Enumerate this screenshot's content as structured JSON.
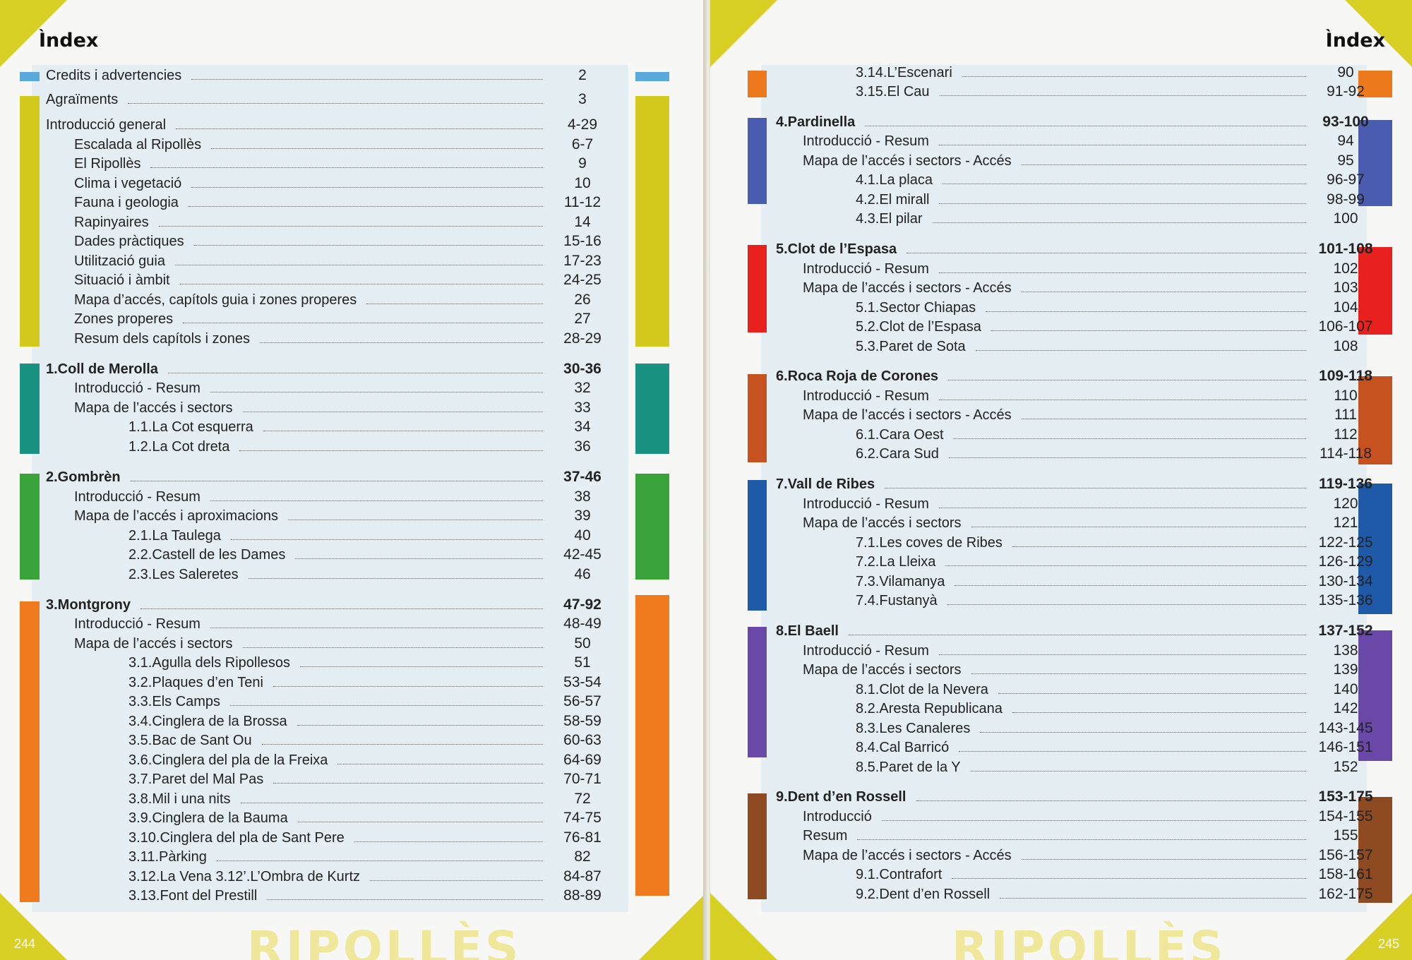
{
  "left": {
    "heading": "Ìndex",
    "page_number": "244",
    "watermark": "RIPOLLÈS",
    "entries": [
      {
        "title": "Credits i advertencies",
        "pages": "2",
        "bold": false,
        "level": 0
      },
      {
        "title": "Agraïments",
        "pages": "3",
        "bold": false,
        "level": 0
      },
      {
        "title": "Introducció general",
        "pages": "4-29",
        "bold": false,
        "level": 0
      },
      {
        "title": "Escalada al Ripollès",
        "pages": "6-7",
        "bold": false,
        "level": 1
      },
      {
        "title": "El Ripollès",
        "pages": "9",
        "bold": false,
        "level": 1
      },
      {
        "title": "Clima i vegetació",
        "pages": "10",
        "bold": false,
        "level": 1
      },
      {
        "title": "Fauna i geologia",
        "pages": "11-12",
        "bold": false,
        "level": 1
      },
      {
        "title": "Rapinyaires",
        "pages": "14",
        "bold": false,
        "level": 1
      },
      {
        "title": "Dades pràctiques",
        "pages": "15-16",
        "bold": false,
        "level": 1
      },
      {
        "title": "Utilització guia",
        "pages": "17-23",
        "bold": false,
        "level": 1
      },
      {
        "title": "Situació i àmbit",
        "pages": "24-25",
        "bold": false,
        "level": 1
      },
      {
        "title": "Mapa d’accés, capítols guia i zones properes",
        "pages": "26",
        "bold": false,
        "level": 1
      },
      {
        "title": "Zones properes",
        "pages": "27",
        "bold": false,
        "level": 1
      },
      {
        "title": "Resum dels capítols i zones",
        "pages": "28-29",
        "bold": false,
        "level": 1
      },
      {
        "title": "1.Coll de Merolla",
        "pages": "30-36",
        "bold": true,
        "level": 0
      },
      {
        "title": "Introducció - Resum",
        "pages": "32",
        "bold": false,
        "level": 1
      },
      {
        "title": "Mapa de l’accés i sectors",
        "pages": "33",
        "bold": false,
        "level": 1
      },
      {
        "title": "1.1.La Cot esquerra",
        "pages": "34",
        "bold": false,
        "level": 2
      },
      {
        "title": "1.2.La Cot dreta",
        "pages": "36",
        "bold": false,
        "level": 2
      },
      {
        "title": "2.Gombrèn",
        "pages": "37-46",
        "bold": true,
        "level": 0
      },
      {
        "title": "Introducció - Resum",
        "pages": "38",
        "bold": false,
        "level": 1
      },
      {
        "title": "Mapa de l’accés i aproximacions",
        "pages": "39",
        "bold": false,
        "level": 1
      },
      {
        "title": "2.1.La Taulega",
        "pages": "40",
        "bold": false,
        "level": 2
      },
      {
        "title": "2.2.Castell de les Dames",
        "pages": "42-45",
        "bold": false,
        "level": 2
      },
      {
        "title": "2.3.Les Saleretes",
        "pages": "46",
        "bold": false,
        "level": 2
      },
      {
        "title": "3.Montgrony",
        "pages": "47-92",
        "bold": true,
        "level": 0
      },
      {
        "title": "Introducció - Resum",
        "pages": "48-49",
        "bold": false,
        "level": 1
      },
      {
        "title": "Mapa de l’accés i sectors",
        "pages": "50",
        "bold": false,
        "level": 1
      },
      {
        "title": "3.1.Agulla dels Ripollesos",
        "pages": "51",
        "bold": false,
        "level": 2
      },
      {
        "title": "3.2.Plaques d’en Teni",
        "pages": "53-54",
        "bold": false,
        "level": 2
      },
      {
        "title": "3.3.Els Camps",
        "pages": "56-57",
        "bold": false,
        "level": 2
      },
      {
        "title": "3.4.Cinglera de la Brossa",
        "pages": "58-59",
        "bold": false,
        "level": 2
      },
      {
        "title": "3.5.Bac de Sant Ou",
        "pages": "60-63",
        "bold": false,
        "level": 2
      },
      {
        "title": "3.6.Cinglera del pla de la Freixa",
        "pages": "64-69",
        "bold": false,
        "level": 2
      },
      {
        "title": "3.7.Paret del Mal Pas",
        "pages": "70-71",
        "bold": false,
        "level": 2
      },
      {
        "title": "3.8.Mil i una nits",
        "pages": "72",
        "bold": false,
        "level": 2
      },
      {
        "title": "3.9.Cinglera de la Bauma",
        "pages": "74-75",
        "bold": false,
        "level": 2
      },
      {
        "title": "3.10.Cinglera del pla de Sant Pere",
        "pages": "76-81",
        "bold": false,
        "level": 2
      },
      {
        "title": "3.11.Pàrking",
        "pages": "82",
        "bold": false,
        "level": 2
      },
      {
        "title": "3.12.La Vena 3.12’.L’Ombra de Kurtz",
        "pages": "84-87",
        "bold": false,
        "level": 2
      },
      {
        "title": "3.13.Font del Prestill",
        "pages": "88-89",
        "bold": false,
        "level": 2
      }
    ],
    "bars": [
      {
        "color": "#5aa8dc"
      },
      {
        "color": "#d3c81c"
      },
      {
        "color": "#1a9282"
      },
      {
        "color": "#3aa33a"
      },
      {
        "color": "#f07a1e"
      }
    ]
  },
  "right": {
    "heading": "Ìndex",
    "page_number": "245",
    "watermark": "RIPOLLÈS",
    "entries": [
      {
        "title": "3.14.L’Escenari",
        "pages": "90",
        "bold": false,
        "level": 2
      },
      {
        "title": "3.15.El Cau",
        "pages": "91-92",
        "bold": false,
        "level": 2
      },
      {
        "title": "4.Pardinella",
        "pages": "93-100",
        "bold": true,
        "level": 0
      },
      {
        "title": "Introducció - Resum",
        "pages": "94",
        "bold": false,
        "level": 1
      },
      {
        "title": "Mapa de l’accés i sectors - Accés",
        "pages": "95",
        "bold": false,
        "level": 1
      },
      {
        "title": "4.1.La placa",
        "pages": "96-97",
        "bold": false,
        "level": 2
      },
      {
        "title": "4.2.El mirall",
        "pages": "98-99",
        "bold": false,
        "level": 2
      },
      {
        "title": "4.3.El pilar",
        "pages": "100",
        "bold": false,
        "level": 2
      },
      {
        "title": "5.Clot de l’Espasa",
        "pages": "101-108",
        "bold": true,
        "level": 0
      },
      {
        "title": "Introducció - Resum",
        "pages": "102",
        "bold": false,
        "level": 1
      },
      {
        "title": "Mapa de l’accés i sectors - Accés",
        "pages": "103",
        "bold": false,
        "level": 1
      },
      {
        "title": "5.1.Sector Chiapas",
        "pages": "104",
        "bold": false,
        "level": 2
      },
      {
        "title": "5.2.Clot de l’Espasa",
        "pages": "106-107",
        "bold": false,
        "level": 2
      },
      {
        "title": "5.3.Paret de Sota",
        "pages": "108",
        "bold": false,
        "level": 2
      },
      {
        "title": "6.Roca Roja de Corones",
        "pages": "109-118",
        "bold": true,
        "level": 0
      },
      {
        "title": "Introducció - Resum",
        "pages": "110",
        "bold": false,
        "level": 1
      },
      {
        "title": "Mapa de l’accés i sectors - Accés",
        "pages": "111",
        "bold": false,
        "level": 1
      },
      {
        "title": "6.1.Cara Oest",
        "pages": "112",
        "bold": false,
        "level": 2
      },
      {
        "title": "6.2.Cara Sud",
        "pages": "114-118",
        "bold": false,
        "level": 2
      },
      {
        "title": "7.Vall de Ribes",
        "pages": "119-136",
        "bold": true,
        "level": 0
      },
      {
        "title": "Introducció - Resum",
        "pages": "120",
        "bold": false,
        "level": 1
      },
      {
        "title": "Mapa de l’accés i sectors",
        "pages": "121",
        "bold": false,
        "level": 1
      },
      {
        "title": "7.1.Les coves de Ribes",
        "pages": "122-125",
        "bold": false,
        "level": 2
      },
      {
        "title": "7.2.La Lleixa",
        "pages": "126-129",
        "bold": false,
        "level": 2
      },
      {
        "title": "7.3.Vilamanya",
        "pages": "130-134",
        "bold": false,
        "level": 2
      },
      {
        "title": "7.4.Fustanyà",
        "pages": "135-136",
        "bold": false,
        "level": 2
      },
      {
        "title": "8.El Baell",
        "pages": "137-152",
        "bold": true,
        "level": 0
      },
      {
        "title": "Introducció - Resum",
        "pages": "138",
        "bold": false,
        "level": 1
      },
      {
        "title": "Mapa de l’accés i sectors",
        "pages": "139",
        "bold": false,
        "level": 1
      },
      {
        "title": "8.1.Clot de la Nevera",
        "pages": "140",
        "bold": false,
        "level": 2
      },
      {
        "title": "8.2.Aresta Republicana",
        "pages": "142",
        "bold": false,
        "level": 2
      },
      {
        "title": "8.3.Les Canaleres",
        "pages": "143-145",
        "bold": false,
        "level": 2
      },
      {
        "title": "8.4.Cal Barricó",
        "pages": "146-151",
        "bold": false,
        "level": 2
      },
      {
        "title": "8.5.Paret de la Y",
        "pages": "152",
        "bold": false,
        "level": 2
      },
      {
        "title": "9.Dent d’en Rossell",
        "pages": "153-175",
        "bold": true,
        "level": 0
      },
      {
        "title": "Introducció",
        "pages": "154-155",
        "bold": false,
        "level": 1
      },
      {
        "title": "Resum",
        "pages": "155",
        "bold": false,
        "level": 1
      },
      {
        "title": "Mapa de l’accés i sectors - Accés",
        "pages": "156-157",
        "bold": false,
        "level": 1
      },
      {
        "title": "9.1.Contrafort",
        "pages": "158-161",
        "bold": false,
        "level": 2
      },
      {
        "title": "9.2.Dent d’en Rossell",
        "pages": "162-175",
        "bold": false,
        "level": 2
      }
    ],
    "bars": [
      {
        "color": "#ec7a1c"
      },
      {
        "color": "#4a5cb0"
      },
      {
        "color": "#e8211f"
      },
      {
        "color": "#c6521f"
      },
      {
        "color": "#1f5aa8"
      },
      {
        "color": "#6a48a8"
      },
      {
        "color": "#8e4a20"
      }
    ]
  }
}
